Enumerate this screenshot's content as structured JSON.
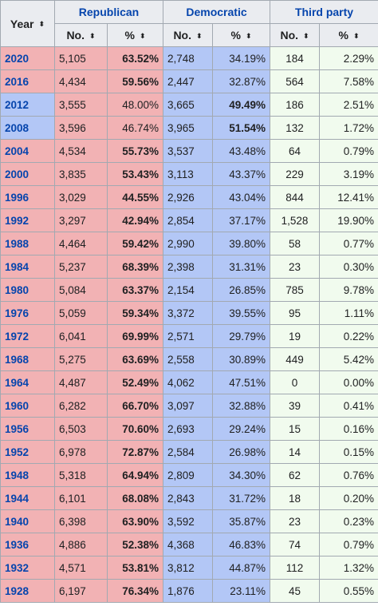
{
  "header": {
    "year_label": "Year",
    "republican_label": "Republican",
    "democratic_label": "Democratic",
    "third_label": "Third party",
    "no_label": "No.",
    "pct_label": "%",
    "sort_icon": "⬍"
  },
  "colors": {
    "republican": "#f2b2b4",
    "democratic": "#b3c7f6",
    "third": "#f1fbee",
    "link": "#0645ad"
  },
  "rows": [
    {
      "year": "2020",
      "winner": "rep",
      "r_no": "5,105",
      "r_pct": "63.52%",
      "d_no": "2,748",
      "d_pct": "34.19%",
      "t_no": "184",
      "t_pct": "2.29%"
    },
    {
      "year": "2016",
      "winner": "rep",
      "r_no": "4,434",
      "r_pct": "59.56%",
      "d_no": "2,447",
      "d_pct": "32.87%",
      "t_no": "564",
      "t_pct": "7.58%"
    },
    {
      "year": "2012",
      "winner": "dem",
      "r_no": "3,555",
      "r_pct": "48.00%",
      "d_no": "3,665",
      "d_pct": "49.49%",
      "t_no": "186",
      "t_pct": "2.51%"
    },
    {
      "year": "2008",
      "winner": "dem",
      "r_no": "3,596",
      "r_pct": "46.74%",
      "d_no": "3,965",
      "d_pct": "51.54%",
      "t_no": "132",
      "t_pct": "1.72%"
    },
    {
      "year": "2004",
      "winner": "rep",
      "r_no": "4,534",
      "r_pct": "55.73%",
      "d_no": "3,537",
      "d_pct": "43.48%",
      "t_no": "64",
      "t_pct": "0.79%"
    },
    {
      "year": "2000",
      "winner": "rep",
      "r_no": "3,835",
      "r_pct": "53.43%",
      "d_no": "3,113",
      "d_pct": "43.37%",
      "t_no": "229",
      "t_pct": "3.19%"
    },
    {
      "year": "1996",
      "winner": "rep",
      "r_no": "3,029",
      "r_pct": "44.55%",
      "d_no": "2,926",
      "d_pct": "43.04%",
      "t_no": "844",
      "t_pct": "12.41%"
    },
    {
      "year": "1992",
      "winner": "rep",
      "r_no": "3,297",
      "r_pct": "42.94%",
      "d_no": "2,854",
      "d_pct": "37.17%",
      "t_no": "1,528",
      "t_pct": "19.90%"
    },
    {
      "year": "1988",
      "winner": "rep",
      "r_no": "4,464",
      "r_pct": "59.42%",
      "d_no": "2,990",
      "d_pct": "39.80%",
      "t_no": "58",
      "t_pct": "0.77%"
    },
    {
      "year": "1984",
      "winner": "rep",
      "r_no": "5,237",
      "r_pct": "68.39%",
      "d_no": "2,398",
      "d_pct": "31.31%",
      "t_no": "23",
      "t_pct": "0.30%"
    },
    {
      "year": "1980",
      "winner": "rep",
      "r_no": "5,084",
      "r_pct": "63.37%",
      "d_no": "2,154",
      "d_pct": "26.85%",
      "t_no": "785",
      "t_pct": "9.78%"
    },
    {
      "year": "1976",
      "winner": "rep",
      "r_no": "5,059",
      "r_pct": "59.34%",
      "d_no": "3,372",
      "d_pct": "39.55%",
      "t_no": "95",
      "t_pct": "1.11%"
    },
    {
      "year": "1972",
      "winner": "rep",
      "r_no": "6,041",
      "r_pct": "69.99%",
      "d_no": "2,571",
      "d_pct": "29.79%",
      "t_no": "19",
      "t_pct": "0.22%"
    },
    {
      "year": "1968",
      "winner": "rep",
      "r_no": "5,275",
      "r_pct": "63.69%",
      "d_no": "2,558",
      "d_pct": "30.89%",
      "t_no": "449",
      "t_pct": "5.42%"
    },
    {
      "year": "1964",
      "winner": "rep",
      "r_no": "4,487",
      "r_pct": "52.49%",
      "d_no": "4,062",
      "d_pct": "47.51%",
      "t_no": "0",
      "t_pct": "0.00%"
    },
    {
      "year": "1960",
      "winner": "rep",
      "r_no": "6,282",
      "r_pct": "66.70%",
      "d_no": "3,097",
      "d_pct": "32.88%",
      "t_no": "39",
      "t_pct": "0.41%"
    },
    {
      "year": "1956",
      "winner": "rep",
      "r_no": "6,503",
      "r_pct": "70.60%",
      "d_no": "2,693",
      "d_pct": "29.24%",
      "t_no": "15",
      "t_pct": "0.16%"
    },
    {
      "year": "1952",
      "winner": "rep",
      "r_no": "6,978",
      "r_pct": "72.87%",
      "d_no": "2,584",
      "d_pct": "26.98%",
      "t_no": "14",
      "t_pct": "0.15%"
    },
    {
      "year": "1948",
      "winner": "rep",
      "r_no": "5,318",
      "r_pct": "64.94%",
      "d_no": "2,809",
      "d_pct": "34.30%",
      "t_no": "62",
      "t_pct": "0.76%"
    },
    {
      "year": "1944",
      "winner": "rep",
      "r_no": "6,101",
      "r_pct": "68.08%",
      "d_no": "2,843",
      "d_pct": "31.72%",
      "t_no": "18",
      "t_pct": "0.20%"
    },
    {
      "year": "1940",
      "winner": "rep",
      "r_no": "6,398",
      "r_pct": "63.90%",
      "d_no": "3,592",
      "d_pct": "35.87%",
      "t_no": "23",
      "t_pct": "0.23%"
    },
    {
      "year": "1936",
      "winner": "rep",
      "r_no": "4,886",
      "r_pct": "52.38%",
      "d_no": "4,368",
      "d_pct": "46.83%",
      "t_no": "74",
      "t_pct": "0.79%"
    },
    {
      "year": "1932",
      "winner": "rep",
      "r_no": "4,571",
      "r_pct": "53.81%",
      "d_no": "3,812",
      "d_pct": "44.87%",
      "t_no": "112",
      "t_pct": "1.32%"
    },
    {
      "year": "1928",
      "winner": "rep",
      "r_no": "6,197",
      "r_pct": "76.34%",
      "d_no": "1,876",
      "d_pct": "23.11%",
      "t_no": "45",
      "t_pct": "0.55%"
    }
  ]
}
